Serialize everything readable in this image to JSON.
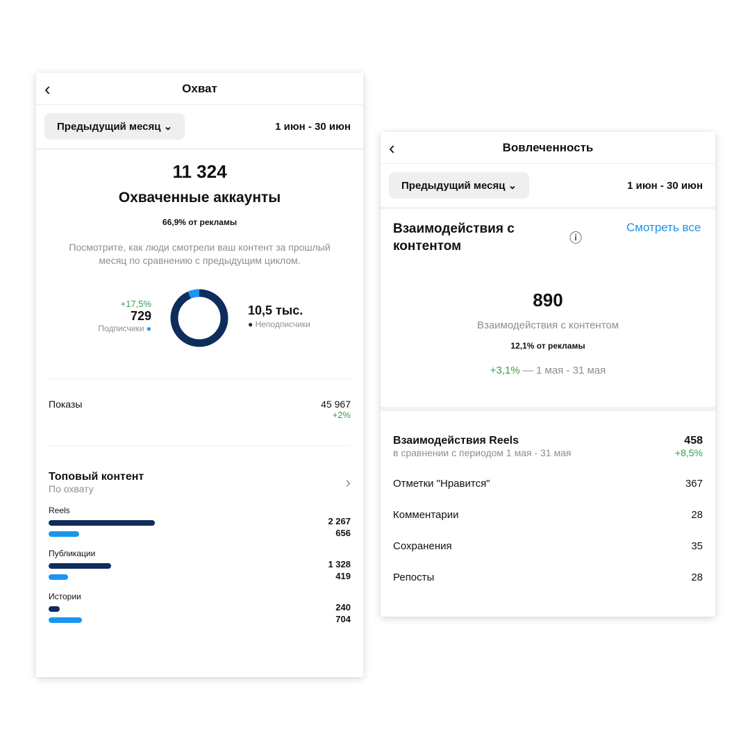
{
  "reach": {
    "title": "Охват",
    "period": "Предыдущий месяц",
    "range": "1 июн - 30 июн",
    "accounts": "11 324",
    "accounts_label": "Охваченные аккаунты",
    "ads_share": "66,9% от рекламы",
    "description": "Посмотрите, как люди смотрели ваш контент за прошлый месяц по сравнению с предыдущим циклом.",
    "followers": {
      "change": "+17,5%",
      "value": "729",
      "label": "Подписчики"
    },
    "non_followers": {
      "value": "10,5 тыс.",
      "label": "Неподписчики"
    },
    "donut": {
      "followers_fraction": 0.065,
      "colors": {
        "followers": "#1b95f0",
        "non_followers": "#0f2d5c"
      }
    },
    "impressions": {
      "label": "Показы",
      "value": "45 967",
      "change": "+2%"
    },
    "top": {
      "title": "Топовый контент",
      "subtitle": "По охвату",
      "items": [
        {
          "label": "Reels",
          "dark": 2267,
          "light": 656,
          "dark_text": "2 267",
          "light_text": "656"
        },
        {
          "label": "Публикации",
          "dark": 1328,
          "light": 419,
          "dark_text": "1 328",
          "light_text": "419"
        },
        {
          "label": "Истории",
          "dark": 240,
          "light": 704,
          "dark_text": "240",
          "light_text": "704"
        }
      ]
    }
  },
  "engagement": {
    "title": "Вовлеченность",
    "period": "Предыдущий месяц",
    "range": "1 июн - 30 июн",
    "section_title": "Взаимодействия с контентом",
    "see_all": "Смотреть все",
    "value": "890",
    "value_label": "Взаимодействия с контентом",
    "ads_share": "12,1% от рекламы",
    "change": "+3,1%",
    "change_period": " — 1 мая - 31 мая",
    "reels": {
      "title": "Взаимодействия Reels",
      "subtitle": "в сравнении с периодом 1 мая - 31 мая",
      "value": "458",
      "change": "+8,5%"
    },
    "rows": [
      {
        "label": "Отметки \"Нравится\"",
        "value": "367"
      },
      {
        "label": "Комментарии",
        "value": "28"
      },
      {
        "label": "Сохранения",
        "value": "35"
      },
      {
        "label": "Репосты",
        "value": "28"
      }
    ]
  }
}
